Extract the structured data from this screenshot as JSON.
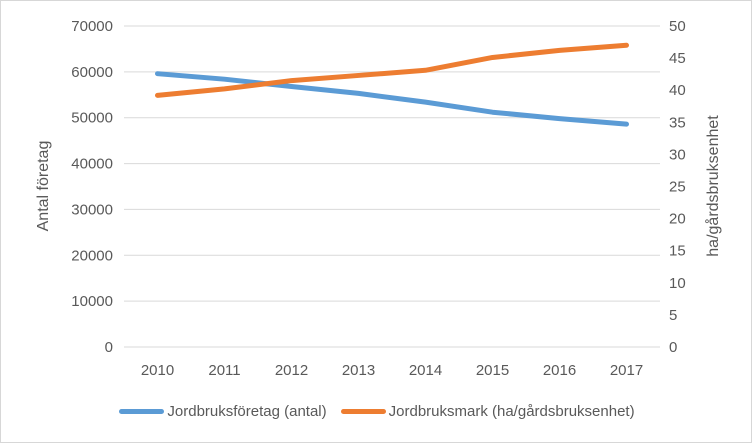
{
  "chart_data": {
    "type": "line",
    "title": "",
    "categories": [
      "2010",
      "2011",
      "2012",
      "2013",
      "2014",
      "2015",
      "2016",
      "2017"
    ],
    "series": [
      {
        "name": "Jordbruksföretag (antal)",
        "axis": "left",
        "color": "#5b9bd5",
        "values": [
          59600,
          58400,
          56800,
          55300,
          53400,
          51200,
          49800,
          48600
        ]
      },
      {
        "name": "Jordbruksmark (ha/gårdsbruksenhet)",
        "axis": "right",
        "color": "#ed7d31",
        "values": [
          39.2,
          40.2,
          41.5,
          42.3,
          43.1,
          45.1,
          46.2,
          47.0
        ]
      }
    ],
    "left_axis": {
      "label": "Antal företag",
      "min": 0,
      "max": 70000,
      "step": 10000,
      "ticks": [
        "0",
        "10000",
        "20000",
        "30000",
        "40000",
        "50000",
        "60000",
        "70000"
      ]
    },
    "right_axis": {
      "label": "ha/gårdsbruksenhet",
      "min": 0,
      "max": 50,
      "step": 5,
      "ticks": [
        "0",
        "5",
        "10",
        "15",
        "20",
        "25",
        "30",
        "35",
        "40",
        "45",
        "50"
      ]
    },
    "grid": true,
    "legend_position": "bottom",
    "styles": {
      "gridline_color": "#d9d9d9",
      "tick_text_color": "#595959",
      "axis_title_color": "#595959",
      "legend_text_color": "#595959"
    }
  }
}
